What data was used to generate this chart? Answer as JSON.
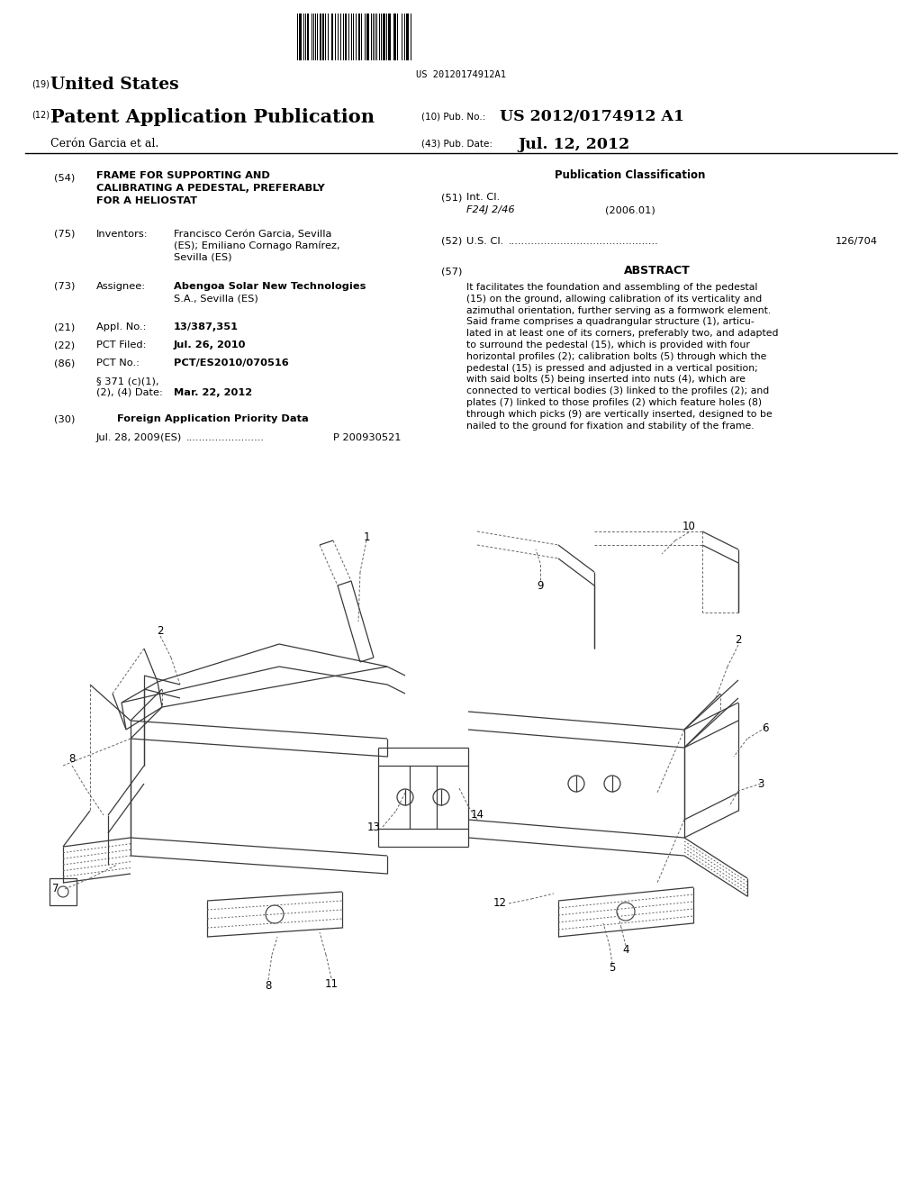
{
  "bg_color": "#ffffff",
  "page_width": 10.24,
  "page_height": 13.2,
  "barcode_text": "US 20120174912A1",
  "header_19_text": "United States",
  "header_12_text": "Patent Application Publication",
  "header_10_label": "(10) Pub. No.:",
  "header_10_val": "US 2012/0174912 A1",
  "header_43_label": "(43) Pub. Date:",
  "header_43_val": "Jul. 12, 2012",
  "header_author": "Cerón Garcia et al.",
  "field_54_text": "FRAME FOR SUPPORTING AND\nCALIBRATING A PEDESTAL, PREFERABLY\nFOR A HELIOSTAT",
  "field_75_key": "Inventors:",
  "field_75_val_line1": "Francisco Cerón Garcia, Sevilla",
  "field_75_val_line2": "(ES); Emiliano Cornago Ramírez,",
  "field_75_val_line3": "Sevilla (ES)",
  "field_73_key": "Assignee:",
  "field_73_val_line1": "Abengoa Solar New Technologies",
  "field_73_val_line2": "S.A., Sevilla (ES)",
  "field_21_key": "Appl. No.:",
  "field_21_val": "13/387,351",
  "field_22_key": "PCT Filed:",
  "field_22_val": "Jul. 26, 2010",
  "field_86_key": "PCT No.:",
  "field_86_val": "PCT/ES2010/070516",
  "field_371_line1": "§ 371 (c)(1),",
  "field_371_line2": "(2), (4) Date:",
  "field_371_val": "Mar. 22, 2012",
  "field_30_text": "Foreign Application Priority Data",
  "field_30_date": "Jul. 28, 2009",
  "field_30_country": "(ES)",
  "field_30_num": "P 200930521",
  "pub_class_title": "Publication Classification",
  "field_51_key": "Int. Cl.",
  "field_51_class": "F24J 2/46",
  "field_51_year": "(2006.01)",
  "field_52_key": "U.S. Cl.",
  "field_52_val": "126/704",
  "field_57_title": "ABSTRACT",
  "abstract_line1": "It facilitates the foundation and assembling of the pedestal",
  "abstract_line2": "(15) on the ground, allowing calibration of its verticality and",
  "abstract_line3": "azimuthal orientation, further serving as a formwork element.",
  "abstract_line4": "Said frame comprises a quadrangular structure (1), articu-",
  "abstract_line5": "lated in at least one of its corners, preferably two, and adapted",
  "abstract_line6": "to surround the pedestal (15), which is provided with four",
  "abstract_line7": "horizontal profiles (2); calibration bolts (5) through which the",
  "abstract_line8": "pedestal (15) is pressed and adjusted in a vertical position;",
  "abstract_line9": "with said bolts (5) being inserted into nuts (4), which are",
  "abstract_line10": "connected to vertical bodies (3) linked to the profiles (2); and",
  "abstract_line11": "plates (7) linked to those profiles (2) which feature holes (8)",
  "abstract_line12": "through which picks (9) are vertically inserted, designed to be",
  "abstract_line13": "nailed to the ground for fixation and stability of the frame.",
  "lc": "#3a3a3a",
  "lw": 0.9
}
